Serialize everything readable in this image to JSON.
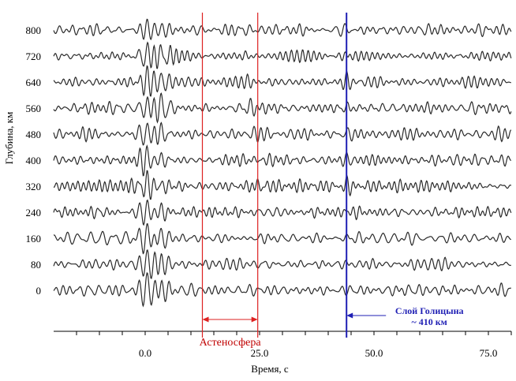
{
  "chart_data": {
    "type": "line",
    "title": "",
    "xlabel": "Время, с",
    "ylabel": "Глубина, км",
    "xlim": [
      -20,
      80
    ],
    "x_ticks": [
      0,
      25,
      50,
      75
    ],
    "x_tick_labels": [
      "0.0",
      "25.0",
      "50.0",
      "75.0"
    ],
    "depth_ticks": [
      800,
      720,
      640,
      560,
      480,
      400,
      320,
      240,
      160,
      80,
      0
    ],
    "grid": false,
    "legend": "none",
    "series": [
      {
        "depth": 800,
        "events": [
          {
            "t": 0.5,
            "amp": 1.6
          },
          {
            "t": 3.5,
            "amp": 1.8
          },
          {
            "t": 21,
            "amp": 0.3
          },
          {
            "t": 44.0,
            "amp": 0.45
          }
        ]
      },
      {
        "depth": 720,
        "events": [
          {
            "t": 0.5,
            "amp": 1.7
          },
          {
            "t": 3.5,
            "amp": 1.7
          },
          {
            "t": 22,
            "amp": 0.35
          },
          {
            "t": 44.0,
            "amp": 0.6
          }
        ]
      },
      {
        "depth": 640,
        "events": [
          {
            "t": 0.5,
            "amp": 1.7
          },
          {
            "t": 3.5,
            "amp": 1.6
          },
          {
            "t": 22.5,
            "amp": 0.4
          },
          {
            "t": 44.0,
            "amp": 0.7
          }
        ]
      },
      {
        "depth": 560,
        "events": [
          {
            "t": 0.5,
            "amp": 1.7
          },
          {
            "t": 3.5,
            "amp": 1.5
          },
          {
            "t": 23,
            "amp": 0.45
          },
          {
            "t": 44.0,
            "amp": 0.8
          }
        ]
      },
      {
        "depth": 480,
        "events": [
          {
            "t": 0.5,
            "amp": 1.8
          },
          {
            "t": 3.5,
            "amp": 1.5
          },
          {
            "t": 23.5,
            "amp": 0.5
          },
          {
            "t": 44.0,
            "amp": 0.8
          }
        ]
      },
      {
        "depth": 400,
        "events": [
          {
            "t": 0.5,
            "amp": 1.8
          },
          {
            "t": 3.5,
            "amp": 1.4
          },
          {
            "t": 24,
            "amp": 0.55
          },
          {
            "t": 44.0,
            "amp": 0.75
          }
        ]
      },
      {
        "depth": 320,
        "events": [
          {
            "t": 0.5,
            "amp": 1.9
          },
          {
            "t": 3.5,
            "amp": 1.4
          },
          {
            "t": 24.5,
            "amp": 0.6
          },
          {
            "t": 44.0,
            "amp": 0.7
          }
        ]
      },
      {
        "depth": 240,
        "events": [
          {
            "t": 0.5,
            "amp": 1.9
          },
          {
            "t": 3.5,
            "amp": 1.3
          },
          {
            "t": 25,
            "amp": 0.6
          },
          {
            "t": 44.0,
            "amp": 0.6
          }
        ]
      },
      {
        "depth": 160,
        "events": [
          {
            "t": 0.5,
            "amp": 2.0
          },
          {
            "t": 3.5,
            "amp": 1.3
          },
          {
            "t": 25.5,
            "amp": 0.55
          },
          {
            "t": 44.0,
            "amp": 0.5
          }
        ]
      },
      {
        "depth": 80,
        "events": [
          {
            "t": 0.5,
            "amp": 2.1
          },
          {
            "t": 3.5,
            "amp": 1.2
          },
          {
            "t": 26,
            "amp": 0.5
          },
          {
            "t": 44.0,
            "amp": 0.45
          }
        ]
      },
      {
        "depth": 0,
        "events": [
          {
            "t": 0.5,
            "amp": 2.3
          },
          {
            "t": 3.5,
            "amp": 1.4
          },
          {
            "t": 26,
            "amp": 0.45
          },
          {
            "t": 44.0,
            "amp": 0.4
          }
        ]
      }
    ],
    "markers": [
      {
        "name": "asthenosphere-left-line",
        "t": 12.5,
        "color": "#dd2222"
      },
      {
        "name": "asthenosphere-right-line",
        "t": 24.6,
        "color": "#dd2222"
      },
      {
        "name": "golitsyn-layer-line",
        "t": 44.0,
        "color": "#1f1fb4"
      }
    ],
    "annotations": {
      "asthenosphere": "Астеносфера",
      "golitsyn_line1": "Слой Голицына",
      "golitsyn_line2": "~ 410 км"
    },
    "colors": {
      "trace": "#2a2a2a",
      "red": "#dd2222",
      "blue": "#1f1fb4",
      "axis": "#000000"
    }
  }
}
